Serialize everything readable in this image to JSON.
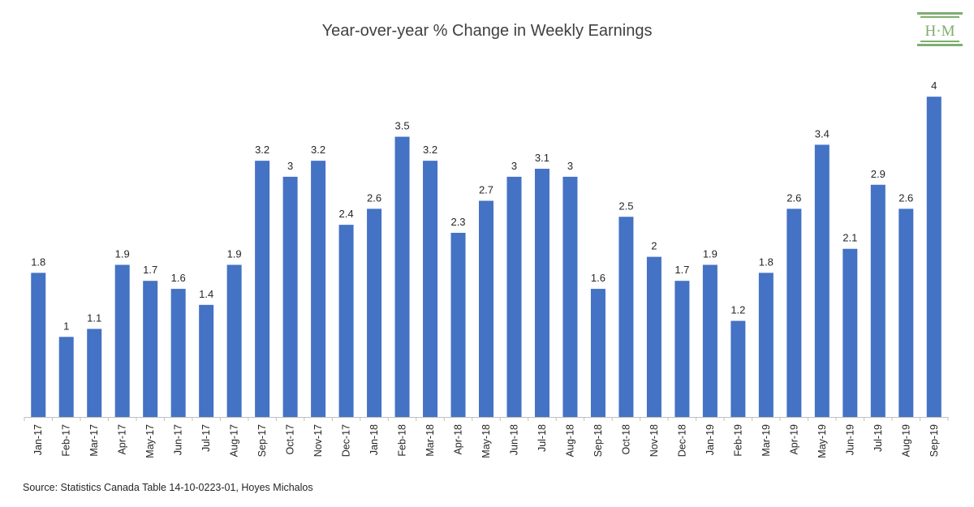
{
  "chart_data": {
    "type": "bar",
    "title": "Year-over-year % Change in Weekly Earnings",
    "xlabel": "",
    "ylabel": "",
    "grid": false,
    "bar_color": "#4472C4",
    "ylim": [
      0,
      4.1
    ],
    "categories": [
      "Jan-17",
      "Feb-17",
      "Mar-17",
      "Apr-17",
      "May-17",
      "Jun-17",
      "Jul-17",
      "Aug-17",
      "Sep-17",
      "Oct-17",
      "Nov-17",
      "Dec-17",
      "Jan-18",
      "Feb-18",
      "Mar-18",
      "Apr-18",
      "May-18",
      "Jun-18",
      "Jul-18",
      "Aug-18",
      "Sep-18",
      "Oct-18",
      "Nov-18",
      "Dec-18",
      "Jan-19",
      "Feb-19",
      "Mar-19",
      "Apr-19",
      "May-19",
      "Jun-19",
      "Jul-19",
      "Aug-19",
      "Sep-19"
    ],
    "values": [
      1.8,
      1,
      1.1,
      1.9,
      1.7,
      1.6,
      1.4,
      1.9,
      3.2,
      3,
      3.2,
      2.4,
      2.6,
      3.5,
      3.2,
      2.3,
      2.7,
      3,
      3.1,
      3,
      1.6,
      2.5,
      2,
      1.7,
      1.9,
      1.2,
      1.8,
      2.6,
      3.4,
      2.1,
      2.9,
      2.6,
      4
    ]
  },
  "source": "Source: Statistics Canada Table 14-10-0223-01, Hoyes Michalos",
  "logo": {
    "text": "H·M",
    "color": "#7fae6f"
  }
}
